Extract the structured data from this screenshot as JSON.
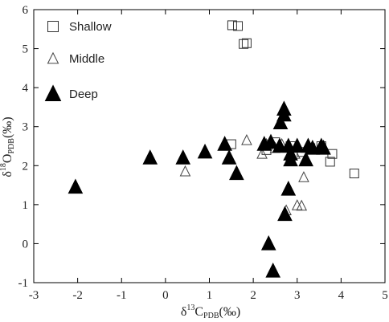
{
  "chart_data": {
    "type": "scatter",
    "xlabel": {
      "prefix": "δ",
      "sup": "13",
      "main": "C",
      "sub": "PDB",
      "unit": "(‰)"
    },
    "ylabel": {
      "prefix": "δ",
      "sup": "18",
      "main": "O",
      "sub": "PDB",
      "unit": "(‰)"
    },
    "xlim": [
      -3,
      5
    ],
    "ylim": [
      -1,
      6
    ],
    "xticks": [
      "-3",
      "-2",
      "-1",
      "0",
      "1",
      "2",
      "3",
      "4",
      "5"
    ],
    "yticks": [
      "-1",
      "0",
      "1",
      "2",
      "3",
      "4",
      "5",
      "6"
    ],
    "grid": false,
    "legend_position": "top-left",
    "series": [
      {
        "name": "Shallow",
        "marker": "square-open",
        "color": "#333333",
        "points": [
          [
            1.52,
            5.6
          ],
          [
            1.65,
            5.58
          ],
          [
            1.78,
            5.12
          ],
          [
            1.85,
            5.14
          ],
          [
            1.5,
            2.55
          ],
          [
            2.3,
            2.4
          ],
          [
            2.5,
            2.6
          ],
          [
            2.85,
            2.5
          ],
          [
            3.1,
            2.35
          ],
          [
            3.3,
            2.45
          ],
          [
            3.55,
            2.5
          ],
          [
            3.75,
            2.1
          ],
          [
            3.8,
            2.3
          ],
          [
            4.3,
            1.8
          ]
        ]
      },
      {
        "name": "Middle",
        "marker": "triangle-open",
        "color": "#333333",
        "points": [
          [
            0.45,
            1.85
          ],
          [
            1.85,
            2.65
          ],
          [
            2.2,
            2.3
          ],
          [
            2.3,
            2.55
          ],
          [
            2.4,
            2.6
          ],
          [
            2.65,
            2.55
          ],
          [
            2.75,
            0.85
          ],
          [
            3.0,
            0.98
          ],
          [
            3.1,
            0.97
          ],
          [
            3.15,
            1.7
          ],
          [
            2.5,
            2.45
          ],
          [
            2.95,
            2.3
          ]
        ]
      },
      {
        "name": "Deep",
        "marker": "triangle-filled",
        "color": "#000000",
        "points": [
          [
            -2.05,
            1.45
          ],
          [
            -0.35,
            2.2
          ],
          [
            0.4,
            2.2
          ],
          [
            0.9,
            2.35
          ],
          [
            1.35,
            2.55
          ],
          [
            1.45,
            2.2
          ],
          [
            1.62,
            1.8
          ],
          [
            2.25,
            2.55
          ],
          [
            2.35,
            0.0
          ],
          [
            2.45,
            -0.7
          ],
          [
            2.6,
            2.5
          ],
          [
            2.62,
            3.1
          ],
          [
            2.7,
            3.45
          ],
          [
            2.7,
            3.3
          ],
          [
            2.72,
            0.75
          ],
          [
            2.8,
            1.4
          ],
          [
            2.8,
            2.5
          ],
          [
            2.85,
            2.3
          ],
          [
            2.85,
            2.15
          ],
          [
            3.0,
            2.5
          ],
          [
            3.2,
            2.15
          ],
          [
            3.25,
            2.5
          ],
          [
            3.35,
            2.45
          ],
          [
            3.55,
            2.5
          ],
          [
            3.6,
            2.45
          ],
          [
            2.4,
            2.6
          ]
        ]
      }
    ]
  }
}
